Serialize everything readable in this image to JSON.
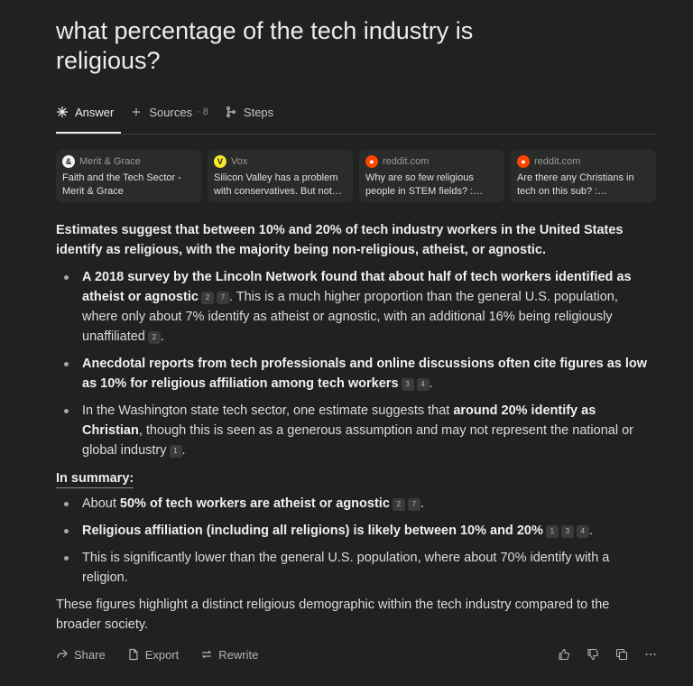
{
  "query": "what percentage of the tech industry is religious?",
  "tabs": {
    "answer": "Answer",
    "sources": "Sources",
    "sources_count": "· 8",
    "steps": "Steps"
  },
  "sources": [
    {
      "site": "Merit & Grace",
      "title": "Faith and the Tech Sector - Merit & Grace",
      "icon": "merit-grace-icon"
    },
    {
      "site": "Vox",
      "title": "Silicon Valley has a problem with conservatives. But not…",
      "icon": "vox-icon"
    },
    {
      "site": "reddit.com",
      "title": "Why are so few religious people in STEM fields? :…",
      "icon": "reddit-icon"
    },
    {
      "site": "reddit.com",
      "title": "Are there any Christians in tech on this sub? :…",
      "icon": "reddit-icon"
    }
  ],
  "answer": {
    "intro": "Estimates suggest that between 10% and 20% of tech industry workers in the United States identify as religious, with the majority being non-religious, atheist, or agnostic.",
    "b1_bold": "A 2018 survey by the Lincoln Network found that about half of tech workers identified as atheist or agnostic",
    "b1_c1": "2",
    "b1_c2": "7",
    "b1_rest": ". This is a much higher proportion than the general U.S. population, where only about 7% identify as atheist or agnostic, with an additional 16% being religiously unaffiliated",
    "b1_c3": "2",
    "b1_end": ".",
    "b2_bold": "Anecdotal reports from tech professionals and online discussions often cite figures as low as 10% for religious affiliation among tech workers",
    "b2_c1": "3",
    "b2_c2": "4",
    "b2_end": ".",
    "b3_pre": "In the Washington state tech sector, one estimate suggests that ",
    "b3_bold": "around 20% identify as Christian",
    "b3_rest": ", though this is seen as a generous assumption and may not represent the national or global industry",
    "b3_c1": "1",
    "b3_end": ".",
    "summary_label": "In summary:",
    "s1_pre": "About ",
    "s1_bold": "50% of tech workers are atheist or agnostic",
    "s1_c1": "2",
    "s1_c2": "7",
    "s1_end": ".",
    "s2_bold": "Religious affiliation (including all religions) is likely between 10% and 20%",
    "s2_c1": "1",
    "s2_c2": "3",
    "s2_c3": "4",
    "s2_end": ".",
    "s3": "This is significantly lower than the general U.S. population, where about 70% identify with a religion.",
    "closing": "These figures highlight a distinct religious demographic within the tech industry compared to the broader society."
  },
  "actions": {
    "share": "Share",
    "export": "Export",
    "rewrite": "Rewrite"
  }
}
